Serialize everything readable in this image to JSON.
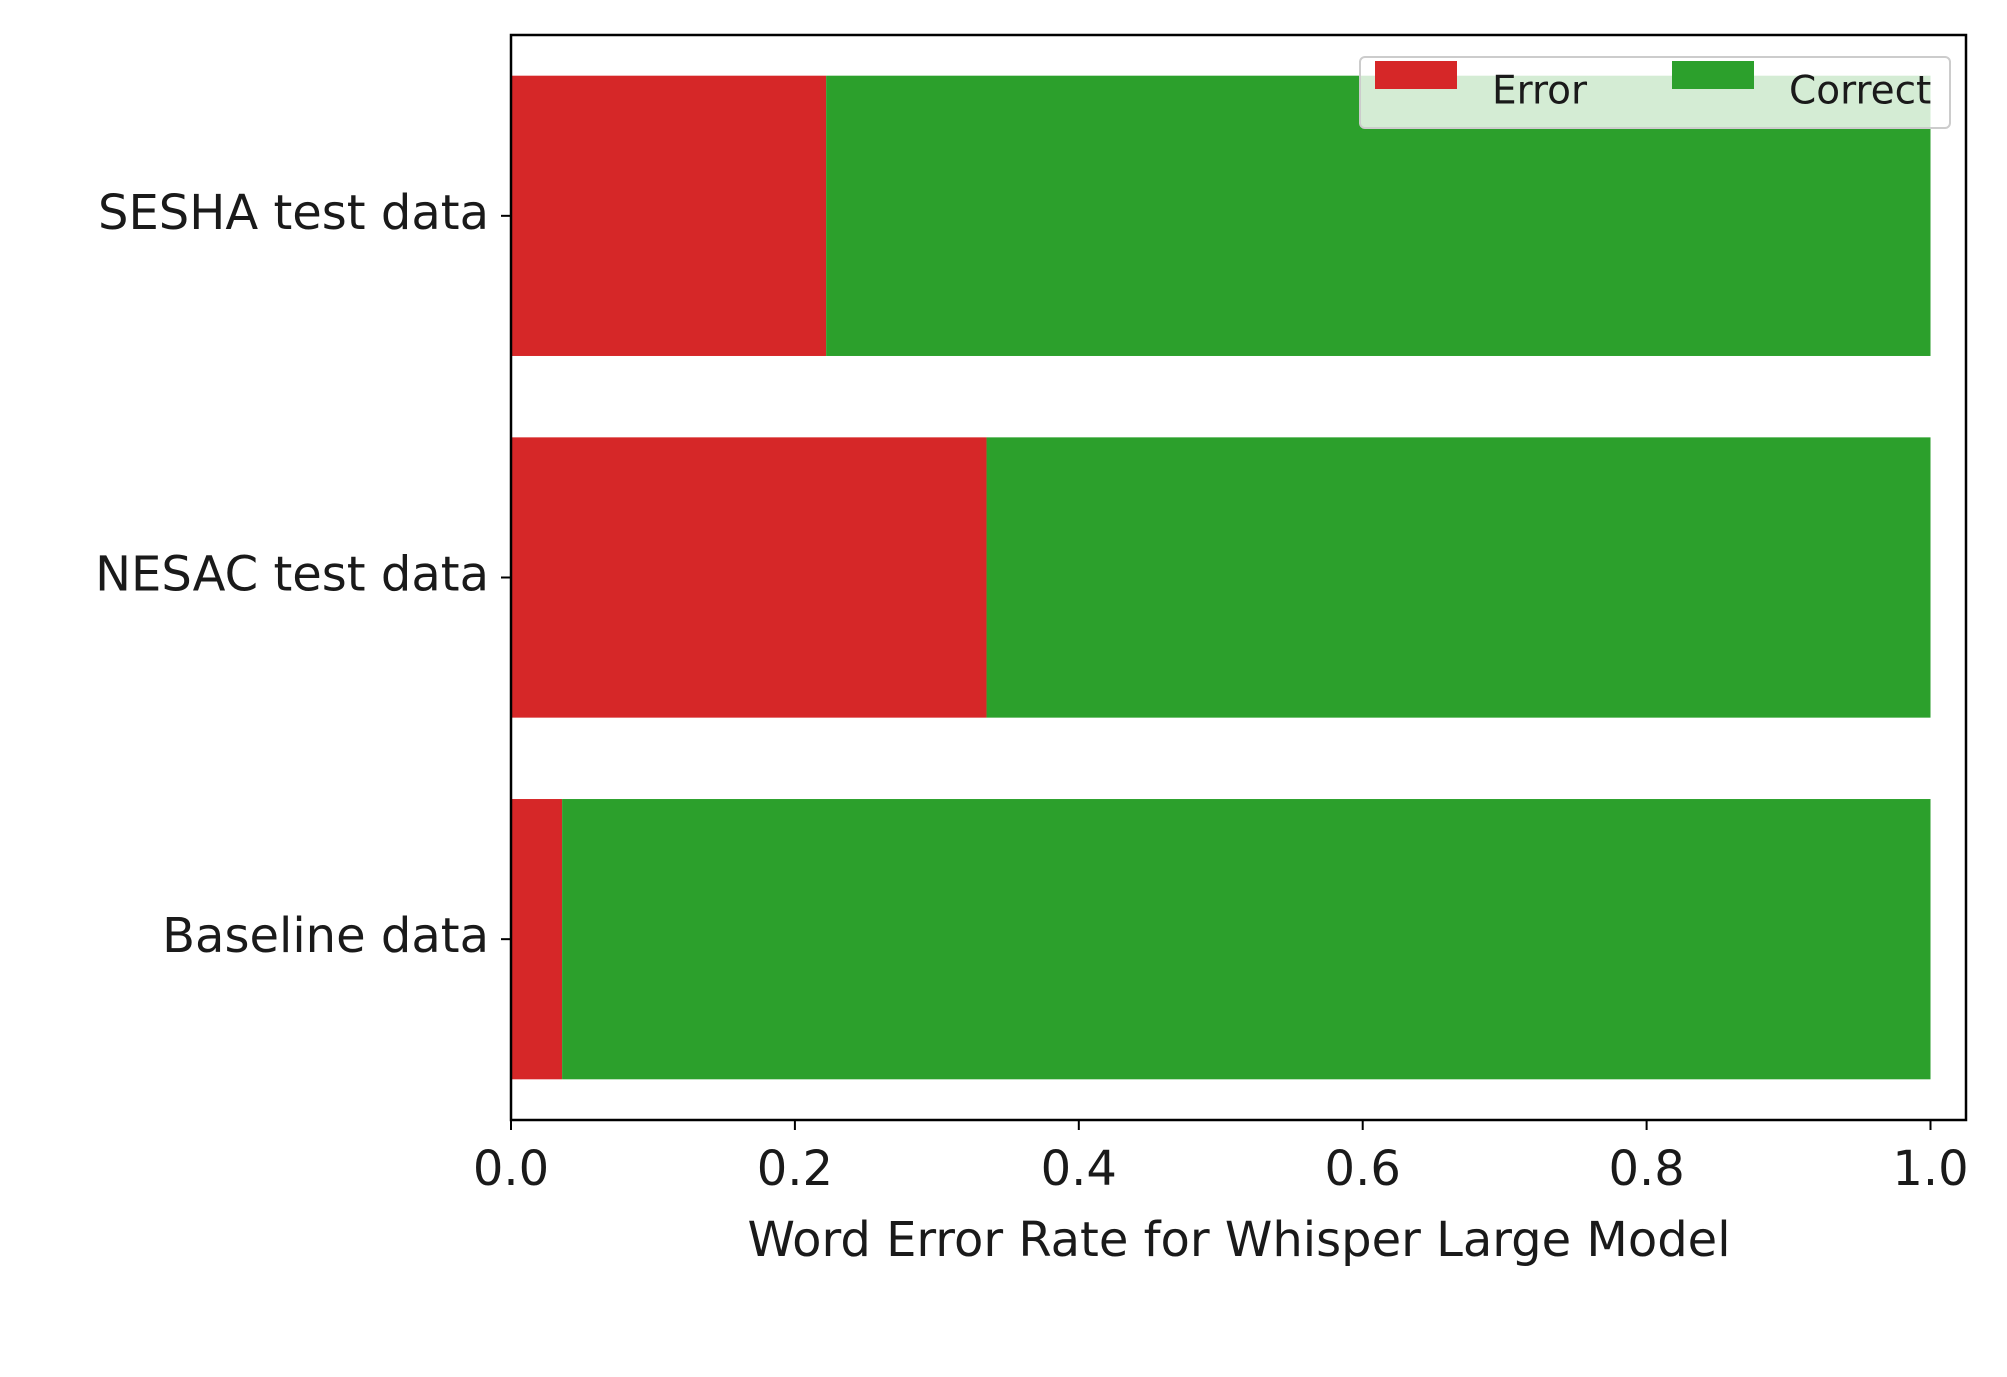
{
  "chart_data": {
    "type": "stacked-barh",
    "xlabel": "Word Error Rate for Whisper Large Model",
    "categories": [
      "SESHA test data",
      "NESAC test data",
      "Baseline data"
    ],
    "series": [
      {
        "name": "Error",
        "color": "#d62728",
        "values": [
          0.222,
          0.335,
          0.036
        ]
      },
      {
        "name": "Correct",
        "color": "#2ca02c",
        "values": [
          0.778,
          0.665,
          0.964
        ]
      }
    ],
    "xlim": [
      0,
      1.025
    ],
    "xticks": [
      {
        "value": 0,
        "label": "0.0"
      },
      0.2,
      0.4,
      0.6,
      0.8,
      {
        "value": 1,
        "label": "1.0"
      }
    ],
    "legend": "upper right"
  }
}
